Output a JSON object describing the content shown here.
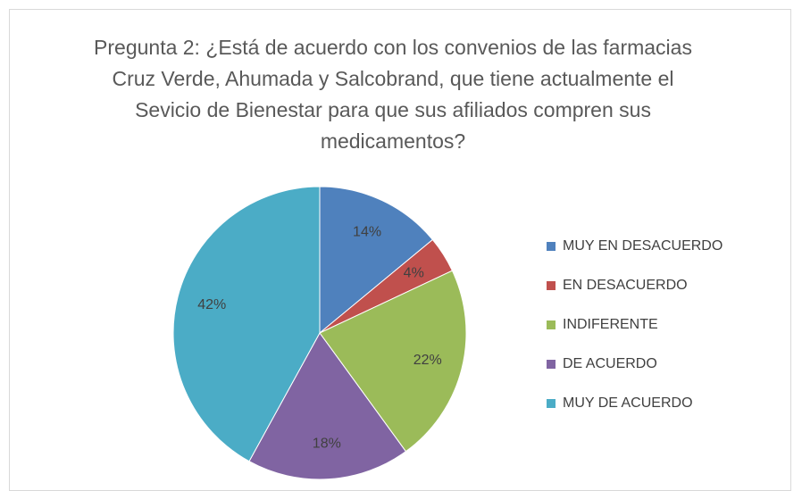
{
  "chart_data": {
    "type": "pie",
    "title": "Pregunta 2: ¿Está de acuerdo con los convenios de las farmacias Cruz Verde, Ahumada y Salcobrand, que tiene actualmente el Sevicio de Bienestar para que sus afiliados compren sus medicamentos?",
    "categories": [
      "MUY EN DESACUERDO",
      "EN DESACUERDO",
      "INDIFERENTE",
      "DE ACUERDO",
      "MUY DE ACUERDO"
    ],
    "values": [
      14,
      4,
      22,
      18,
      42
    ],
    "value_labels": [
      "14%",
      "4%",
      "22%",
      "18%",
      "42%"
    ],
    "colors": [
      "#4f81bd",
      "#c0504d",
      "#9bbb59",
      "#8064a2",
      "#4bacc6"
    ],
    "legend": "right"
  }
}
